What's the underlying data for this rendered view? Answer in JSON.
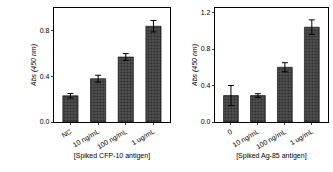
{
  "chart_data": [
    {
      "type": "bar",
      "categories": [
        "NC",
        "10 ng/mL",
        "100 ng/mL",
        "1 ug/mL"
      ],
      "values": [
        0.23,
        0.38,
        0.57,
        0.84
      ],
      "errors": [
        0.02,
        0.03,
        0.03,
        0.05
      ],
      "color": "#505050",
      "x_label": "[Spiked CFP-10 antigen]",
      "y_label": "Abs (450 nm)",
      "ylim": [
        0,
        1.0
      ],
      "yticks": [
        {
          "value": 0,
          "label": "0.0"
        },
        {
          "value": 0.4,
          "label": "0.4"
        },
        {
          "value": 0.8,
          "label": "0.8"
        }
      ],
      "grid": false
    },
    {
      "type": "bar",
      "categories": [
        "0",
        "10 ng/mL",
        "100 ng/mL",
        "1 ug/mL"
      ],
      "values": [
        0.29,
        0.29,
        0.6,
        1.04
      ],
      "errors": [
        0.11,
        0.02,
        0.05,
        0.08
      ],
      "color": "#505050",
      "x_label": "[Spiked Ag-85 antigen]",
      "y_label": "Abs (450 nm)",
      "ylim": [
        0,
        1.25
      ],
      "yticks": [
        {
          "value": 0,
          "label": "0.0"
        },
        {
          "value": 0.4,
          "label": "0.4"
        },
        {
          "value": 0.8,
          "label": "0.8"
        },
        {
          "value": 1.2,
          "label": "1.2"
        }
      ],
      "grid": false
    }
  ]
}
